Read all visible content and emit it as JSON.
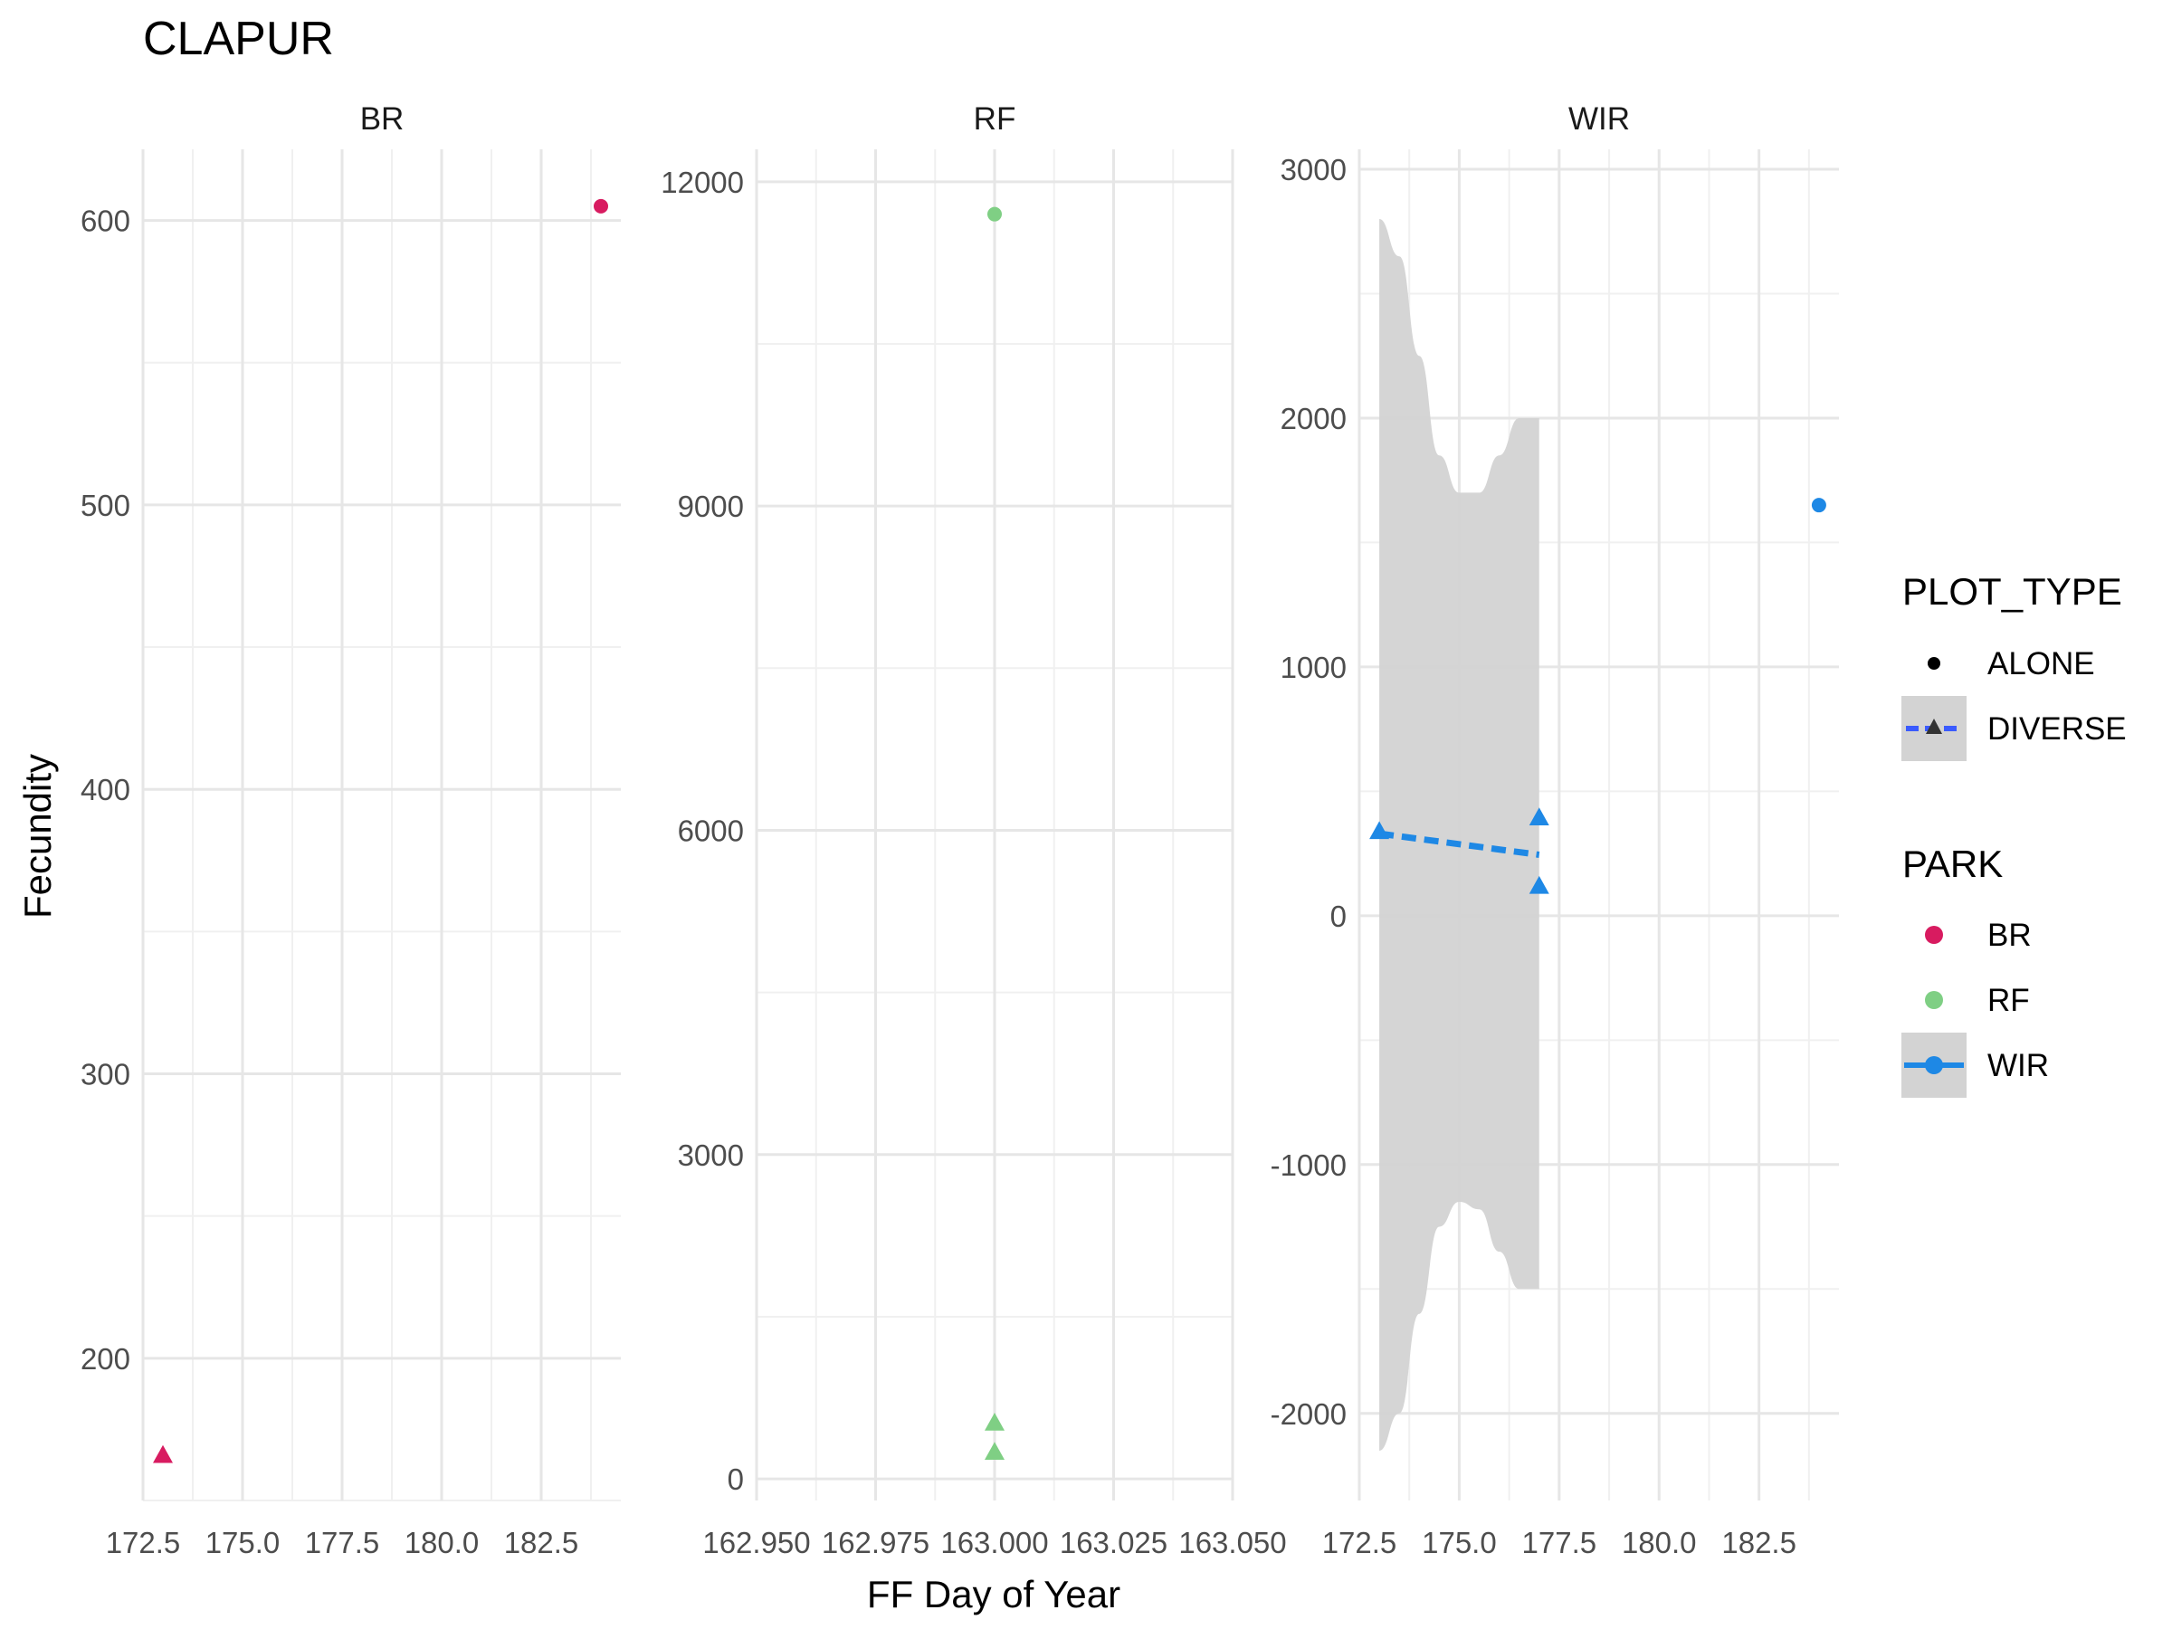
{
  "chart_data": {
    "type": "scatter",
    "title": "CLAPUR",
    "xlabel": "FF Day of Year",
    "ylabel": "Fecundity",
    "grid": true,
    "legend_position": "right",
    "panels": [
      {
        "name": "BR",
        "xlim": [
          172.5,
          184.5
        ],
        "ylim": [
          150,
          625
        ],
        "x_ticks": [
          172.5,
          175.0,
          177.5,
          180.0,
          182.5
        ],
        "x_tick_labels": [
          "172.5",
          "175.0",
          "177.5",
          "180.0",
          "182.5"
        ],
        "y_ticks": [
          200,
          300,
          400,
          500,
          600
        ],
        "y_tick_labels": [
          "200",
          "300",
          "400",
          "500",
          "600"
        ],
        "points": [
          {
            "x": 184,
            "y": 605,
            "plot_type": "ALONE",
            "park": "BR"
          },
          {
            "x": 173,
            "y": 166,
            "plot_type": "DIVERSE",
            "park": "BR"
          }
        ],
        "ribbon": null,
        "fit_line": null
      },
      {
        "name": "RF",
        "xlim": [
          162.95,
          163.05
        ],
        "ylim": [
          -200,
          12300
        ],
        "x_ticks": [
          162.95,
          162.975,
          163.0,
          163.025,
          163.05
        ],
        "x_tick_labels": [
          "162.950",
          "162.975",
          "163.000",
          "163.025",
          "163.050"
        ],
        "y_ticks": [
          0,
          3000,
          6000,
          9000,
          12000
        ],
        "y_tick_labels": [
          "0",
          "3000",
          "6000",
          "9000",
          "12000"
        ],
        "points": [
          {
            "x": 163.0,
            "y": 11700,
            "plot_type": "ALONE",
            "park": "RF"
          },
          {
            "x": 163.0,
            "y": 520,
            "plot_type": "DIVERSE",
            "park": "RF"
          },
          {
            "x": 163.0,
            "y": 250,
            "plot_type": "DIVERSE",
            "park": "RF"
          }
        ],
        "ribbon": null,
        "fit_line": null
      },
      {
        "name": "WIR",
        "xlim": [
          172.5,
          184.5
        ],
        "ylim": [
          -2350,
          3080
        ],
        "x_ticks": [
          172.5,
          175.0,
          177.5,
          180.0,
          182.5
        ],
        "x_tick_labels": [
          "172.5",
          "175.0",
          "177.5",
          "180.0",
          "182.5"
        ],
        "y_ticks": [
          -2000,
          -1000,
          0,
          1000,
          2000,
          3000
        ],
        "y_tick_labels": [
          "-2000",
          "-1000",
          "0",
          "1000",
          "2000",
          "3000"
        ],
        "points": [
          {
            "x": 184,
            "y": 1650,
            "plot_type": "ALONE",
            "park": "WIR"
          },
          {
            "x": 173,
            "y": 340,
            "plot_type": "DIVERSE",
            "park": "WIR"
          },
          {
            "x": 177,
            "y": 395,
            "plot_type": "DIVERSE",
            "park": "WIR"
          },
          {
            "x": 177,
            "y": 120,
            "plot_type": "DIVERSE",
            "park": "WIR"
          }
        ],
        "fit_line": {
          "x": [
            173,
            177
          ],
          "y": [
            330,
            245
          ],
          "style": "dashed"
        },
        "ribbon": {
          "x": [
            173,
            173.5,
            174,
            174.5,
            175,
            175.5,
            176,
            176.5,
            177
          ],
          "upper": [
            2800,
            2650,
            2250,
            1850,
            1700,
            1700,
            1850,
            2000,
            2000
          ],
          "lower": [
            -2150,
            -2000,
            -1600,
            -1250,
            -1150,
            -1180,
            -1350,
            -1500,
            -1500
          ]
        }
      }
    ],
    "legend": {
      "plot_type": {
        "title": "PLOT_TYPE",
        "items": [
          {
            "label": "ALONE",
            "shape": "circle"
          },
          {
            "label": "DIVERSE",
            "shape": "triangle"
          }
        ]
      },
      "park": {
        "title": "PARK",
        "items": [
          {
            "label": "BR",
            "color": "#d81b60"
          },
          {
            "label": "RF",
            "color": "#7fcf84"
          },
          {
            "label": "WIR",
            "color": "#1e88e5"
          }
        ]
      }
    },
    "colors": {
      "BR": "#d81b60",
      "RF": "#7fcf84",
      "WIR": "#1e88e5",
      "ribbon": "#d3d3d3",
      "legend_line_blue": "#3a5bff",
      "grid": "#ebebeb"
    }
  }
}
